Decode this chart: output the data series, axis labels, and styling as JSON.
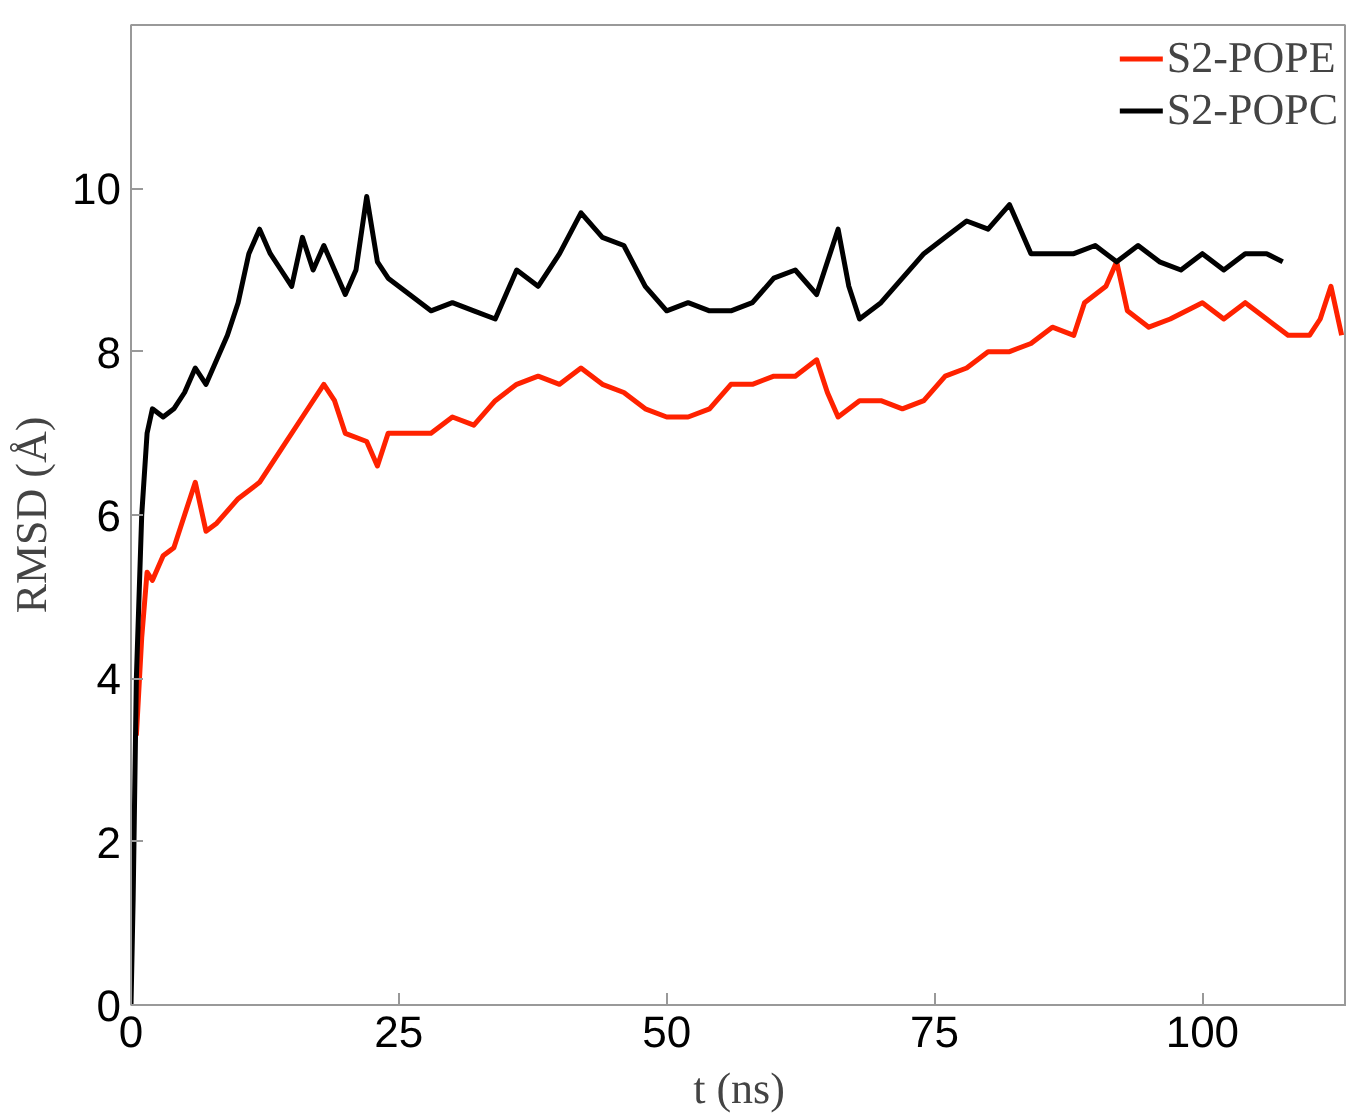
{
  "chart_data": {
    "type": "line",
    "xlabel": "t (ns)",
    "ylabel": "RMSD (Å)",
    "xlim": [
      0,
      113.5
    ],
    "ylim": [
      0,
      12
    ],
    "xticks": [
      0,
      25,
      50,
      75,
      100
    ],
    "yticks": [
      0,
      2,
      4,
      6,
      8,
      10
    ],
    "grid": false,
    "legend": "top right",
    "marker": "none",
    "line_style": "solid",
    "series": [
      {
        "name": "S2-POPE",
        "color": "#ff2200",
        "x": [
          0.5,
          1,
          1.5,
          2,
          3,
          4,
          5,
          6,
          7,
          8,
          10,
          12,
          14,
          16,
          18,
          19,
          20,
          22,
          23,
          24,
          26,
          28,
          30,
          32,
          34,
          36,
          38,
          40,
          42,
          44,
          46,
          48,
          50,
          52,
          54,
          56,
          58,
          60,
          62,
          64,
          65,
          66,
          68,
          70,
          72,
          74,
          76,
          78,
          80,
          82,
          84,
          86,
          88,
          89,
          91,
          92,
          93,
          95,
          97,
          100,
          102,
          104,
          106,
          108,
          110,
          111,
          112,
          113
        ],
        "values": [
          3.3,
          4.5,
          5.3,
          5.2,
          5.5,
          5.6,
          6.0,
          6.4,
          5.8,
          5.9,
          6.2,
          6.4,
          6.8,
          7.2,
          7.6,
          7.4,
          7.0,
          6.9,
          6.6,
          7.0,
          7.0,
          7.0,
          7.2,
          7.1,
          7.4,
          7.6,
          7.7,
          7.6,
          7.8,
          7.6,
          7.5,
          7.3,
          7.2,
          7.2,
          7.3,
          7.6,
          7.6,
          7.7,
          7.7,
          7.9,
          7.5,
          7.2,
          7.4,
          7.4,
          7.3,
          7.4,
          7.7,
          7.8,
          8.0,
          8.0,
          8.1,
          8.3,
          8.2,
          8.6,
          8.8,
          9.1,
          8.5,
          8.3,
          8.4,
          8.6,
          8.4,
          8.6,
          8.4,
          8.2,
          8.2,
          8.4,
          8.8,
          8.2
        ]
      },
      {
        "name": "S2-POPC",
        "color": "#000000",
        "x": [
          0,
          0.2,
          0.5,
          1,
          1.5,
          2,
          3,
          4,
          5,
          6,
          7,
          8,
          9,
          10,
          11,
          12,
          13,
          14,
          15,
          16,
          17,
          18,
          19,
          20,
          21,
          22,
          23,
          24,
          26,
          28,
          30,
          32,
          34,
          36,
          38,
          40,
          42,
          44,
          46,
          48,
          50,
          52,
          54,
          56,
          58,
          60,
          62,
          64,
          66,
          67,
          68,
          70,
          72,
          74,
          76,
          78,
          80,
          82,
          84,
          86,
          88,
          90,
          92,
          94,
          96,
          98,
          100,
          102,
          104,
          106,
          107.5
        ],
        "values": [
          0,
          1.3,
          4,
          6,
          7,
          7.3,
          7.2,
          7.3,
          7.5,
          7.8,
          7.6,
          7.9,
          8.2,
          8.6,
          9.2,
          9.5,
          9.2,
          9.0,
          8.8,
          9.4,
          9.0,
          9.3,
          9.0,
          8.7,
          9.0,
          9.9,
          9.1,
          8.9,
          8.7,
          8.5,
          8.6,
          8.5,
          8.4,
          9.0,
          8.8,
          9.2,
          9.7,
          9.4,
          9.3,
          8.8,
          8.5,
          8.6,
          8.5,
          8.5,
          8.6,
          8.9,
          9.0,
          8.7,
          9.5,
          8.8,
          8.4,
          8.6,
          8.9,
          9.2,
          9.4,
          9.6,
          9.5,
          9.8,
          9.2,
          9.2,
          9.2,
          9.3,
          9.1,
          9.3,
          9.1,
          9.0,
          9.2,
          9.0,
          9.2,
          9.2,
          9.1
        ]
      }
    ]
  }
}
